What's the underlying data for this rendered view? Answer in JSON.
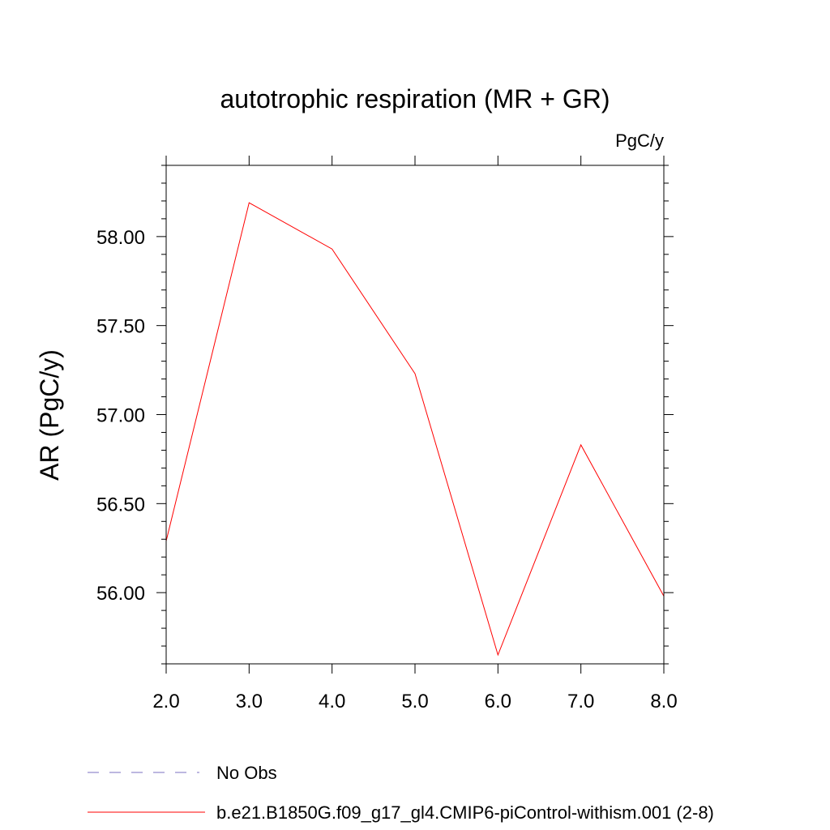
{
  "chart_data": {
    "type": "line",
    "title": "autotrophic respiration (MR + GR)",
    "units_label": "PgC/y",
    "xlabel": "",
    "ylabel": "AR  (PgC/y)",
    "xlim": [
      2.0,
      8.0
    ],
    "ylim": [
      55.6,
      58.4
    ],
    "x_ticks": [
      "2.0",
      "3.0",
      "4.0",
      "5.0",
      "6.0",
      "7.0",
      "8.0"
    ],
    "x_tick_values": [
      2,
      3,
      4,
      5,
      6,
      7,
      8
    ],
    "y_ticks": [
      "56.00",
      "56.50",
      "57.00",
      "57.50",
      "58.00"
    ],
    "y_tick_values": [
      56.0,
      56.5,
      57.0,
      57.5,
      58.0
    ],
    "grid": false,
    "legend_placement": "bottom",
    "series": [
      {
        "name": "b.e21.B1850G.f09_g17_gl4.CMIP6-piControl-withism.001 (2-8)",
        "color": "#ff0000",
        "style": "solid",
        "x": [
          2,
          3,
          4,
          5,
          6,
          7,
          8
        ],
        "y": [
          56.29,
          58.19,
          57.93,
          57.23,
          55.65,
          56.83,
          55.98
        ]
      }
    ],
    "legend": [
      {
        "label": "No Obs",
        "color": "#7b6fc0",
        "style": "dashed"
      },
      {
        "label": "b.e21.B1850G.f09_g17_gl4.CMIP6-piControl-withism.001 (2-8)",
        "color": "#ff0000",
        "style": "solid"
      }
    ]
  }
}
